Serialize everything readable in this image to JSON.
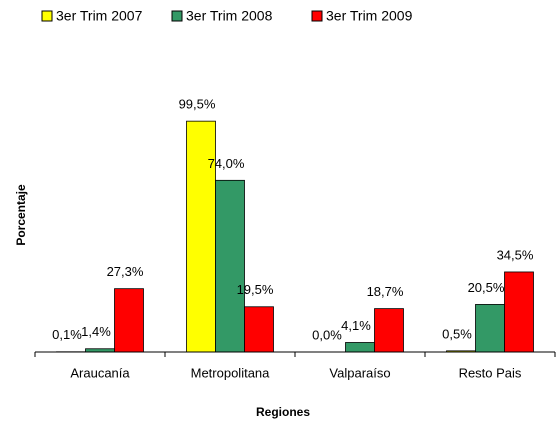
{
  "chart_data": {
    "type": "bar",
    "categories": [
      "Araucanía",
      "Metropolitana",
      "Valparaíso",
      "Resto Pais"
    ],
    "series": [
      {
        "name": "3er Trim 2007",
        "color": "#ffff00",
        "values": [
          0.1,
          99.5,
          0.0,
          0.5
        ],
        "value_labels": [
          "0,1%",
          "99,5%",
          "0,0%",
          "0,5%"
        ]
      },
      {
        "name": "3er Trim 2008",
        "color": "#339966",
        "values": [
          1.4,
          74.0,
          4.1,
          20.5
        ],
        "value_labels": [
          "1,4%",
          "74,0%",
          "4,1%",
          "20,5%"
        ]
      },
      {
        "name": "3er Trim 2009",
        "color": "#ff0000",
        "values": [
          27.3,
          19.5,
          18.7,
          34.5
        ],
        "value_labels": [
          "27,3%",
          "19,5%",
          "18,7%",
          "34,5%"
        ]
      }
    ],
    "ylabel": "Porcentaje",
    "xlabel": "Regiones",
    "ylim": [
      0,
      100
    ],
    "legend": "top"
  }
}
